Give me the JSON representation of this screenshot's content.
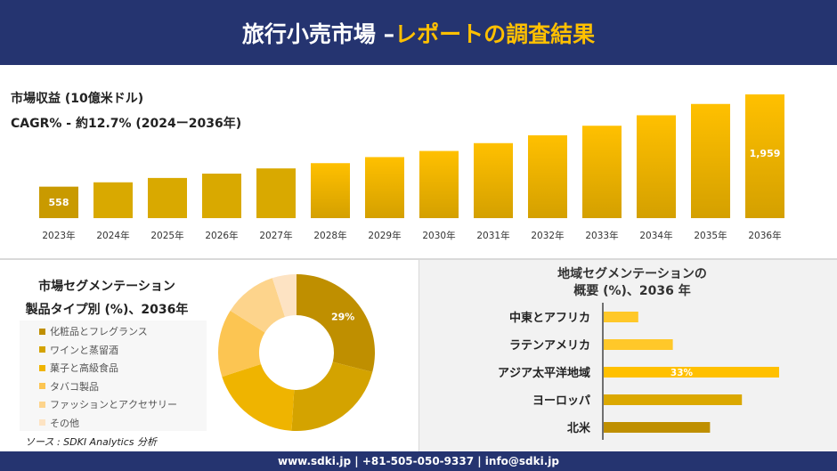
{
  "header": {
    "title_white": "旅行小売市場 –",
    "title_yellow": "レポートの調査結果"
  },
  "colors": {
    "navy": "#253470",
    "accent": "#ffc000"
  },
  "chart_data": [
    {
      "type": "bar",
      "title": "市場収益 (10億米ドル)",
      "subtitle": "CAGR% - 約12.7% (2024ー2036年)",
      "categories": [
        "2023年",
        "2024年",
        "2025年",
        "2026年",
        "2027年",
        "2028年",
        "2029年",
        "2030年",
        "2031年",
        "2032年",
        "2033年",
        "2034年",
        "2035年",
        "2036年"
      ],
      "values": [
        558,
        624,
        690,
        756,
        835,
        915,
        1007,
        1100,
        1219,
        1338,
        1483,
        1642,
        1814,
        1959
      ],
      "data_labels": {
        "0": "558",
        "13": "1,959"
      },
      "ylim": [
        80,
        2000
      ],
      "grid": false
    },
    {
      "type": "pie",
      "title": "市場セグメンテーション",
      "subtitle": "製品タイプ別 (%)、2036年",
      "categories": [
        "化粧品とフレグランス",
        "ワインと蒸留酒",
        "菓子と高級食品",
        "タバコ製品",
        "ファッションとアクセサリー",
        "その他"
      ],
      "values": [
        29,
        22,
        19,
        14,
        11,
        5
      ],
      "colors": [
        "#bf8f00",
        "#d4a300",
        "#efb400",
        "#fcc552",
        "#fdd48c",
        "#fde3c3"
      ],
      "data_labels": {
        "0": "29%"
      },
      "legend": "left",
      "donut": true
    },
    {
      "type": "bar",
      "orientation": "horizontal",
      "title": "地域セグメンテーションの",
      "subtitle": "概要 (%)、2036 年",
      "categories": [
        "中東とアフリカ",
        "ラテンアメリカ",
        "アジア太平洋地域",
        "ヨーロッパ",
        "北米"
      ],
      "values": [
        6.5,
        13,
        33,
        26,
        20
      ],
      "colors": [
        "#ffc829",
        "#ffc829",
        "#ffc000",
        "#dba800",
        "#bf8f00"
      ],
      "data_labels": {
        "2": "33%"
      },
      "xlim": [
        0,
        33
      ]
    }
  ],
  "source": "ソース : SDKI Analytics 分析",
  "footer": {
    "contact": "www.sdki.jp | +81-505-050-9337 | info@sdki.jp"
  }
}
